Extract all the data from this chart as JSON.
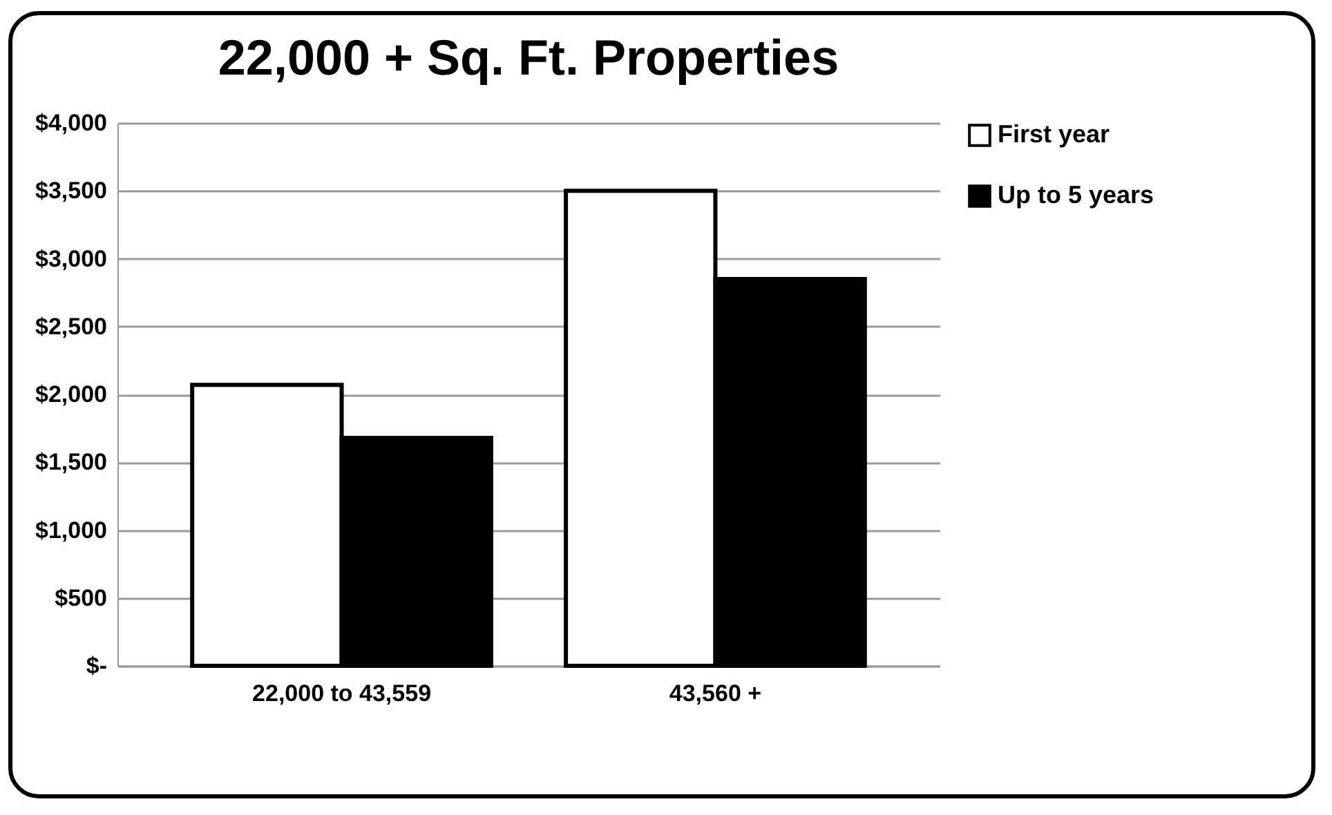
{
  "chart_data": {
    "type": "bar",
    "title": "22,000 + Sq. Ft. Properties",
    "categories": [
      "22,000 to 43,559",
      "43,560 +"
    ],
    "series": [
      {
        "name": "First year",
        "color": "#ffffff",
        "values": [
          2070,
          3500
        ]
      },
      {
        "name": "Up to 5 years",
        "color": "#000000",
        "values": [
          1680,
          2850
        ]
      }
    ],
    "ylim": [
      0,
      4000
    ],
    "yticks": [
      {
        "value": 0,
        "label": "$-"
      },
      {
        "value": 500,
        "label": "$500"
      },
      {
        "value": 1000,
        "label": "$1,000"
      },
      {
        "value": 1500,
        "label": "$1,500"
      },
      {
        "value": 2000,
        "label": "$2,000"
      },
      {
        "value": 2500,
        "label": "$2,500"
      },
      {
        "value": 3000,
        "label": "$3,000"
      },
      {
        "value": 3500,
        "label": "$3,500"
      },
      {
        "value": 4000,
        "label": "$4,000"
      }
    ],
    "grid": "y",
    "legend": "right"
  }
}
